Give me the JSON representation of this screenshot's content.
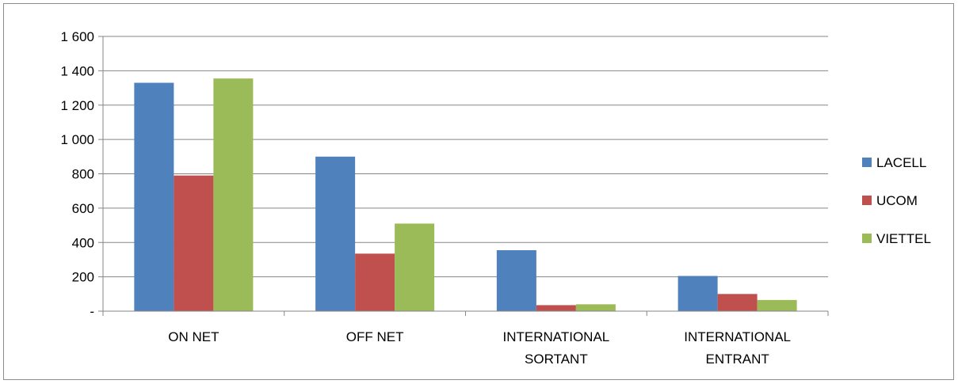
{
  "chart_data": {
    "type": "bar",
    "categories": [
      [
        "ON NET"
      ],
      [
        "OFF NET"
      ],
      [
        "INTERNATIONAL",
        "SORTANT"
      ],
      [
        "INTERNATIONAL",
        "ENTRANT"
      ]
    ],
    "series": [
      {
        "name": "LACELL",
        "color": "#4f81bd",
        "values": [
          1330,
          900,
          355,
          205
        ]
      },
      {
        "name": "UCOM",
        "color": "#c0504d",
        "values": [
          790,
          335,
          35,
          100
        ]
      },
      {
        "name": "VIETTEL",
        "color": "#9bbb59",
        "values": [
          1355,
          510,
          40,
          65
        ]
      }
    ],
    "ylim": [
      0,
      1600
    ],
    "yticks": [
      {
        "value": 0,
        "label": "-"
      },
      {
        "value": 200,
        "label": "200"
      },
      {
        "value": 400,
        "label": "400"
      },
      {
        "value": 600,
        "label": "600"
      },
      {
        "value": 800,
        "label": "800"
      },
      {
        "value": 1000,
        "label": "1 000"
      },
      {
        "value": 1200,
        "label": "1 200"
      },
      {
        "value": 1400,
        "label": "1 400"
      },
      {
        "value": 1600,
        "label": "1 600"
      }
    ],
    "grid": true,
    "legend": "right"
  }
}
